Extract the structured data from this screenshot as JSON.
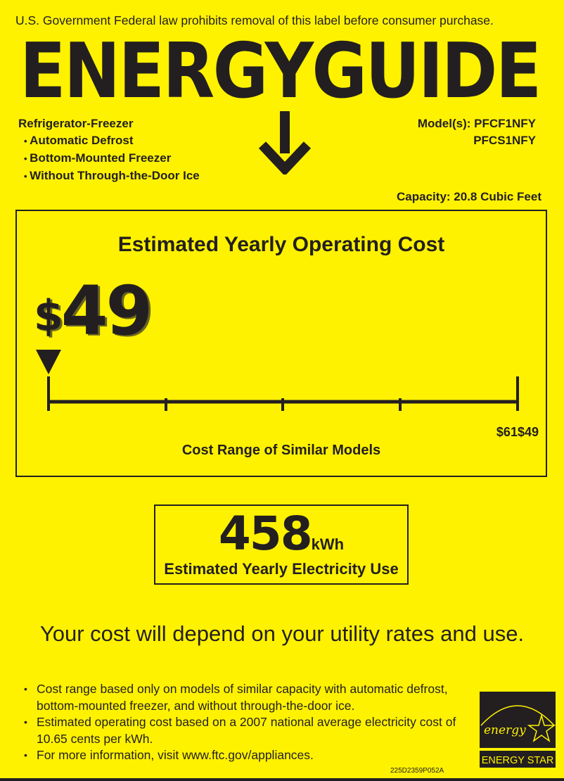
{
  "legal_notice": "U.S. Government Federal law prohibits removal of this label before consumer purchase.",
  "brand_title": "ENERGYGUIDE",
  "appliance": {
    "type": "Refrigerator-Freezer",
    "features": [
      "Automatic Defrost",
      "Bottom-Mounted Freezer",
      "Without Through-the-Door Ice"
    ]
  },
  "models": {
    "label": "Model(s):",
    "values": [
      "PFCF1NFY",
      "PFCS1NFY"
    ]
  },
  "capacity": "Capacity: 20.8 Cubic Feet",
  "operating_cost": {
    "title": "Estimated Yearly Operating Cost",
    "currency": "$",
    "value": "49",
    "range_label": "$61$49",
    "range_title": "Cost Range of Similar Models",
    "marker_position_fraction": 0
  },
  "electricity": {
    "value": "458",
    "unit": "kWh",
    "label": "Estimated Yearly Electricity Use"
  },
  "disclaimer": "Your cost will depend on your utility rates and use.",
  "notes": [
    "Cost range based only on models of similar capacity with automatic defrost, bottom-mounted freezer, and without through-the-door ice.",
    "Estimated operating cost based on a 2007 national average electricity cost of 10.65 cents per kWh.",
    "For more information, visit www.ftc.gov/appliances."
  ],
  "label_code": "225D2359P052A",
  "energy_star": {
    "script": "energy",
    "label": "ENERGY STAR"
  },
  "colors": {
    "background": "#fff200",
    "ink": "#231f20"
  }
}
